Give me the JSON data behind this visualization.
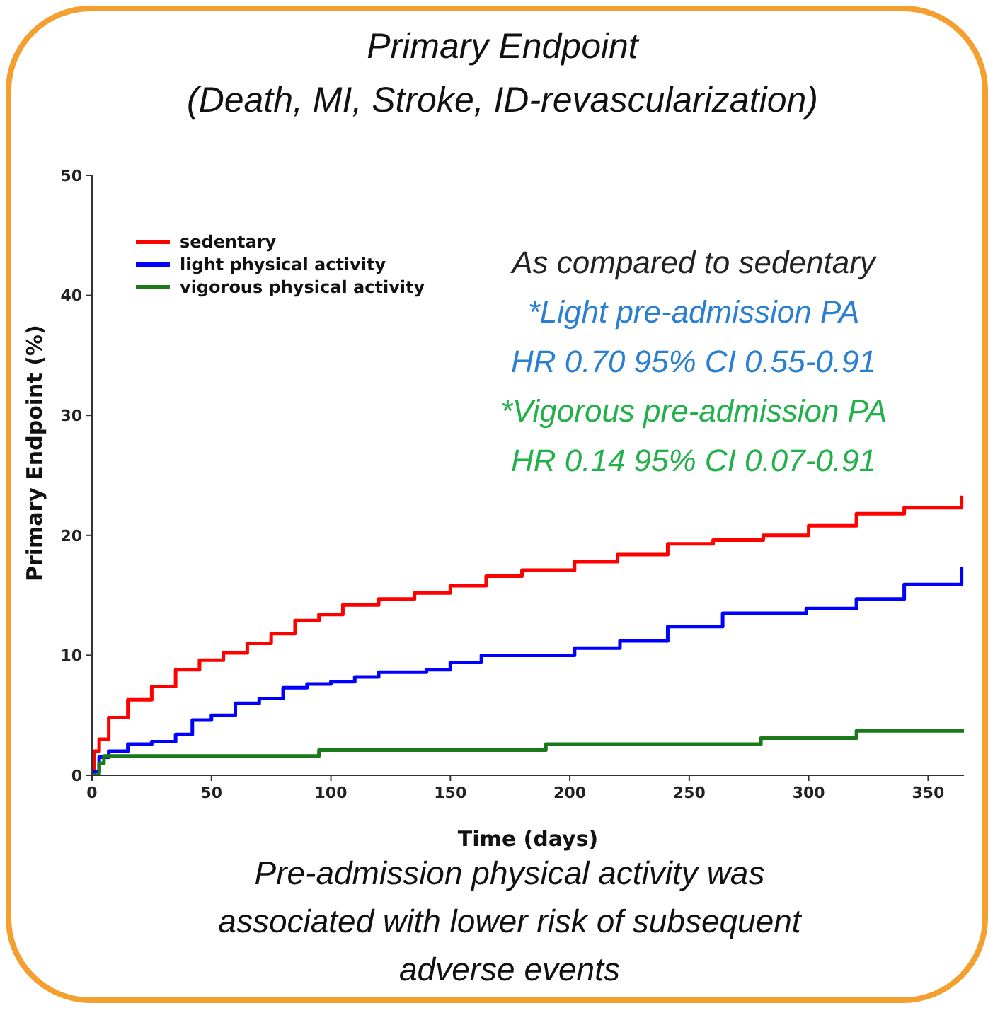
{
  "chart_data": {
    "type": "step",
    "title": "Primary Endpoint\n(Death, MI, Stroke, ID-revascularization)",
    "xlabel": "Time (days)",
    "ylabel": "Primary Endpoint (%)",
    "xlim": [
      0,
      365
    ],
    "xticks": [
      0,
      50,
      100,
      150,
      200,
      250,
      300,
      350
    ],
    "ylim": [
      0,
      50
    ],
    "yticks": [
      0,
      10,
      20,
      30,
      40,
      50
    ],
    "grid": false,
    "legend": "top left",
    "marker": "none",
    "line_style": "solid",
    "annotations": [
      "As compared to sedentary",
      "*Light pre-admission PA",
      "HR 0.70 95% CI 0.55-0.91",
      "*Vigorous pre-admission PA",
      "HR 0.14 95% CI 0.07-0.91",
      "Pre-admission physical activity was associated with lower risk of subsequent adverse events"
    ],
    "series": [
      {
        "name": "sedentary",
        "color": "#ff0000",
        "x": [
          0,
          1,
          3,
          7,
          15,
          25,
          35,
          45,
          55,
          65,
          75,
          85,
          95,
          105,
          120,
          135,
          150,
          165,
          180,
          202,
          220,
          241,
          260,
          281,
          300,
          320,
          340,
          364
        ],
        "values": [
          0,
          2,
          3,
          4.8,
          6.3,
          7.4,
          8.8,
          9.6,
          10.2,
          11,
          11.8,
          12.9,
          13.4,
          14.2,
          14.7,
          15.2,
          15.8,
          16.6,
          17.1,
          17.8,
          18.4,
          19.3,
          19.6,
          20,
          20.8,
          21.8,
          22.3,
          23.3
        ]
      },
      {
        "name": "light physical activity",
        "color": "#0000ff",
        "x": [
          0,
          3,
          7,
          15,
          25,
          35,
          42,
          50,
          60,
          70,
          80,
          90,
          100,
          110,
          120,
          140,
          150,
          163,
          202,
          221,
          241,
          264,
          299,
          320,
          340,
          364
        ],
        "values": [
          0.3,
          1.5,
          2,
          2.6,
          2.8,
          3.4,
          4.6,
          5,
          6,
          6.4,
          7.3,
          7.6,
          7.8,
          8.2,
          8.6,
          8.8,
          9.4,
          10,
          10.6,
          11.2,
          12.4,
          13.5,
          13.9,
          14.7,
          15.9,
          17.4
        ]
      },
      {
        "name": "vigorous physical activity",
        "color": "#1a7a1a",
        "x": [
          0,
          3,
          5,
          95,
          190,
          280,
          320,
          365
        ],
        "values": [
          0,
          1,
          1.6,
          2.1,
          2.6,
          3.1,
          3.7,
          3.7
        ]
      }
    ]
  }
}
